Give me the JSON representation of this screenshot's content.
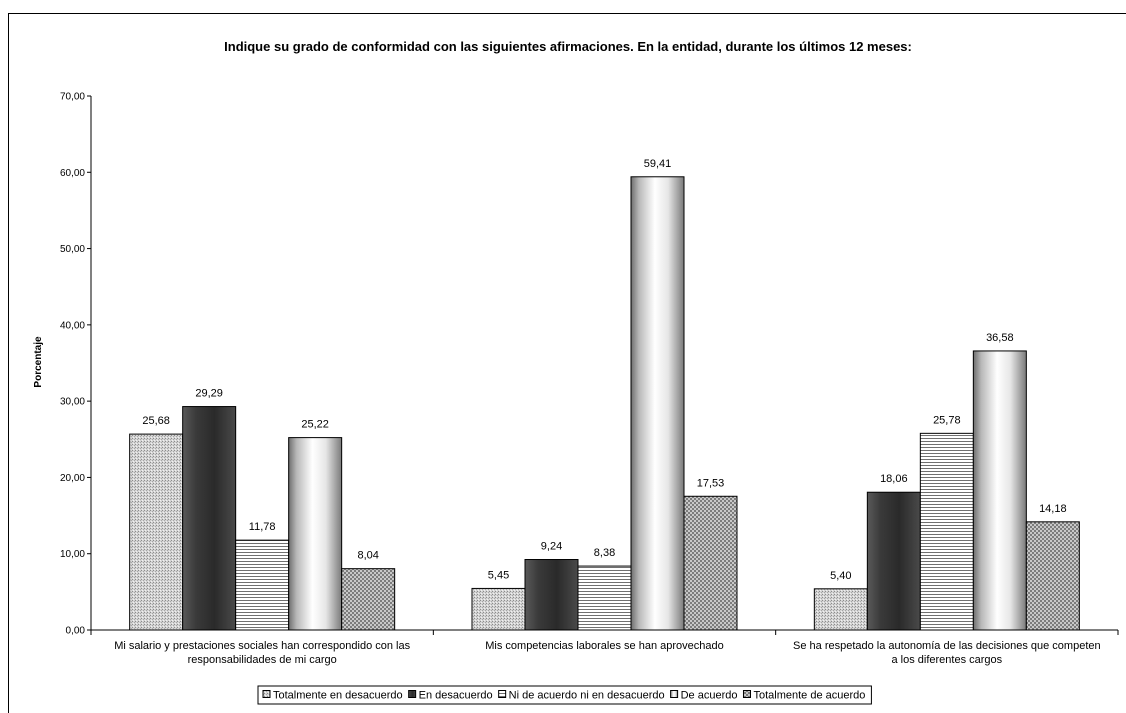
{
  "chart_data": {
    "type": "bar",
    "title": "Indique su grado de conformidad con las siguientes afirmaciones. En la entidad, durante los últimos 12 meses:",
    "xlabel": "",
    "ylabel": "Porcentaje",
    "ylim": [
      0,
      70
    ],
    "yticks": [
      "0,00",
      "10,00",
      "20,00",
      "30,00",
      "40,00",
      "50,00",
      "60,00",
      "70,00"
    ],
    "grid": false,
    "legend_position": "bottom",
    "categories": [
      [
        "Mi salario y prestaciones sociales han correspondido con las",
        "responsabilidades de mi cargo"
      ],
      [
        "Mis competencias laborales se han aprovechado"
      ],
      [
        "Se ha respetado la autonomía de las decisiones que competen",
        "a los diferentes cargos"
      ]
    ],
    "series": [
      {
        "name": "Totalmente en desacuerdo",
        "values": [
          25.68,
          5.45,
          5.4
        ],
        "labels": [
          "25,68",
          "5,45",
          "5,40"
        ],
        "pattern": "dots-light"
      },
      {
        "name": "En desacuerdo",
        "values": [
          29.29,
          9.24,
          18.06
        ],
        "labels": [
          "29,29",
          "9,24",
          "18,06"
        ],
        "pattern": "dark"
      },
      {
        "name": "Ni de acuerdo ni en desacuerdo",
        "values": [
          11.78,
          8.38,
          25.78
        ],
        "labels": [
          "11,78",
          "8,38",
          "25,78"
        ],
        "pattern": "hlines"
      },
      {
        "name": "De acuerdo",
        "values": [
          25.22,
          59.41,
          36.58
        ],
        "labels": [
          "25,22",
          "59,41",
          "36,58"
        ],
        "pattern": "cylinder"
      },
      {
        "name": "Totalmente de acuerdo",
        "values": [
          8.04,
          17.53,
          14.18
        ],
        "labels": [
          "8,04",
          "17,53",
          "14,18"
        ],
        "pattern": "checker"
      }
    ]
  }
}
